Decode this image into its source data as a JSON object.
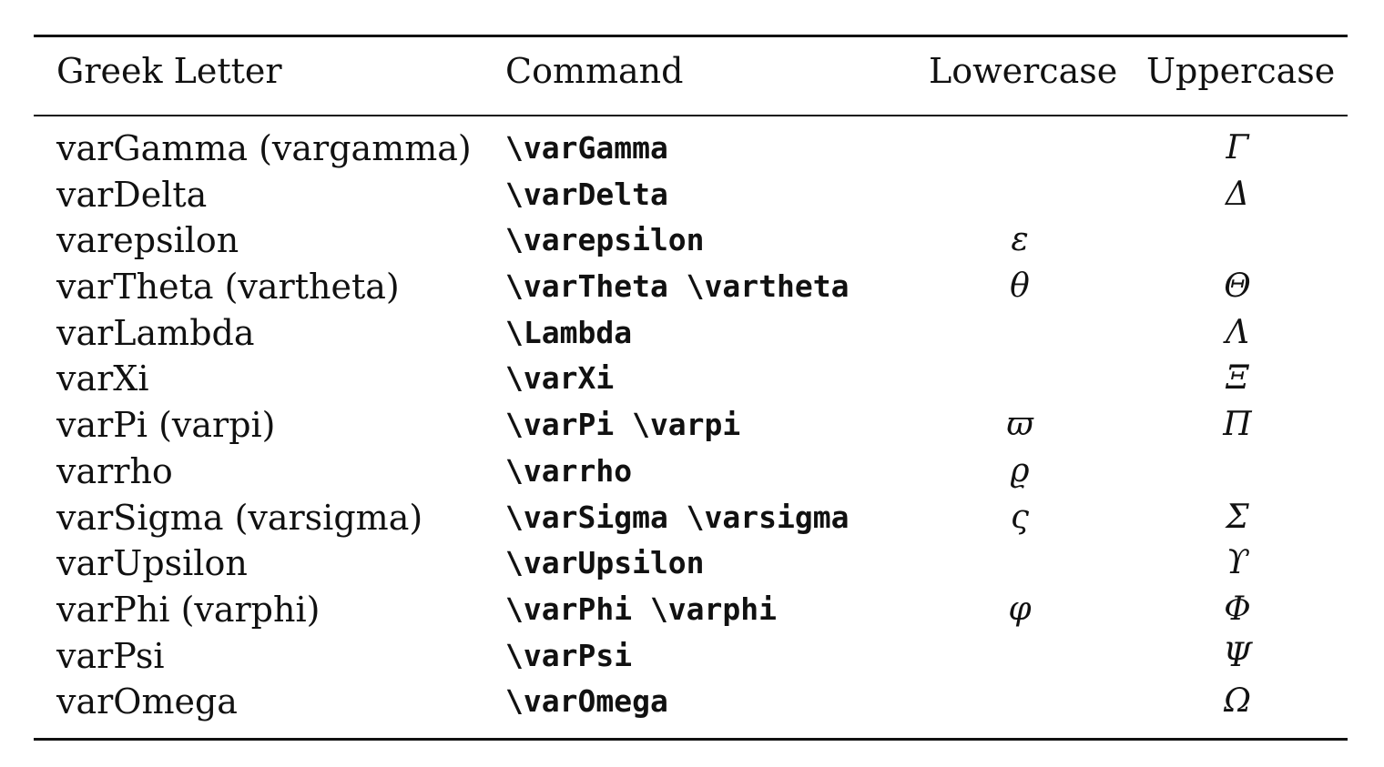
{
  "table": {
    "headers": {
      "name": "Greek Letter",
      "command": "Command",
      "lowercase": "Lowercase",
      "uppercase": "Uppercase"
    },
    "rows": [
      {
        "name": "varGamma (vargamma)",
        "command": "\\varGamma",
        "lowercase": "",
        "uppercase": "Γ"
      },
      {
        "name": "varDelta",
        "command": "\\varDelta",
        "lowercase": "",
        "uppercase": "Δ"
      },
      {
        "name": "varepsilon",
        "command": "\\varepsilon",
        "lowercase": "ε",
        "uppercase": ""
      },
      {
        "name": "varTheta (vartheta)",
        "command": "\\varTheta \\vartheta",
        "lowercase": "θ",
        "uppercase": "Θ"
      },
      {
        "name": "varLambda",
        "command": "\\Lambda",
        "lowercase": "",
        "uppercase": "Λ"
      },
      {
        "name": "varXi",
        "command": "\\varXi",
        "lowercase": "",
        "uppercase": "Ξ"
      },
      {
        "name": "varPi (varpi)",
        "command": "\\varPi \\varpi",
        "lowercase": "ϖ",
        "uppercase": "Π"
      },
      {
        "name": "varrho",
        "command": "\\varrho",
        "lowercase": "ϱ",
        "uppercase": ""
      },
      {
        "name": "varSigma (varsigma)",
        "command": "\\varSigma \\varsigma",
        "lowercase": "ς",
        "uppercase": "Σ"
      },
      {
        "name": "varUpsilon",
        "command": "\\varUpsilon",
        "lowercase": "",
        "uppercase": "ϒ"
      },
      {
        "name": "varPhi (varphi)",
        "command": "\\varPhi \\varphi",
        "lowercase": "φ",
        "uppercase": "Φ"
      },
      {
        "name": "varPsi",
        "command": "\\varPsi",
        "lowercase": "",
        "uppercase": "Ψ"
      },
      {
        "name": "varOmega",
        "command": "\\varOmega",
        "lowercase": "",
        "uppercase": "Ω"
      }
    ]
  }
}
